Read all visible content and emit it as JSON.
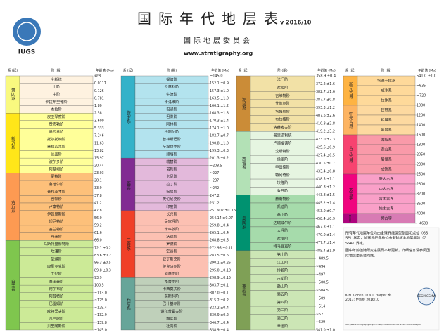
{
  "header": {
    "title": "国际年代地层表",
    "version": "v 2016/10",
    "subtitle": "国际地层委员会",
    "url": "www.stratigraphy.org",
    "logo": "IUGS"
  },
  "column_headers": [
    "系 (纪)",
    "阶 (期)",
    "年龄值 (Ma)"
  ],
  "panels": [
    {
      "top_age": "现今",
      "groups": [
        {
          "name": "第四系",
          "color": "#f9f97f",
          "stage_color": "#fef2e0",
          "rows": [
            {
              "name": "全新统",
              "age": "0.0117"
            },
            {
              "name": "上阶",
              "age": "0.126"
            },
            {
              "name": "中阶",
              "age": "0.781"
            },
            {
              "name": "卡拉布里雅阶",
              "age": "1.80"
            },
            {
              "name": "杰拉阶",
              "age": "2.58"
            }
          ]
        },
        {
          "name": "新近系",
          "color": "#ffe619",
          "stage_color": "#ffff99",
          "rows": [
            {
              "name": "皮亚琴察阶",
              "age": "3.600"
            },
            {
              "name": "赞克勒阶",
              "age": "5.333"
            },
            {
              "name": "墨西拿阶",
              "age": "7.246"
            },
            {
              "name": "托尔托纳阶",
              "age": "11.63"
            },
            {
              "name": "塞拉瓦莱阶",
              "age": "13.82"
            },
            {
              "name": "兰盖阶",
              "age": "15.97"
            },
            {
              "name": "波尔多阶",
              "age": "20.44"
            },
            {
              "name": "阿基坦阶",
              "age": "23.03"
            }
          ]
        },
        {
          "name": "古近系",
          "color": "#fd9a52",
          "stage_color": "#fdc07a",
          "rows": [
            {
              "name": "夏特阶",
              "age": "28.1"
            },
            {
              "name": "鲁培尔阶",
              "age": "33.9"
            },
            {
              "name": "普利亚本阶",
              "age": "37.8"
            },
            {
              "name": "巴顿阶",
              "age": "41.2"
            },
            {
              "name": "卢泰特阶",
              "age": "47.8"
            },
            {
              "name": "伊普里斯阶",
              "age": "56.0"
            },
            {
              "name": "坦尼特阶",
              "age": "59.2"
            },
            {
              "name": "塞兰特阶",
              "age": "61.6"
            },
            {
              "name": "丹麦阶",
              "age": "66.0"
            }
          ]
        },
        {
          "name": "白垩系",
          "color": "#7fc64e",
          "stage_color": "#ccea97",
          "rows": [
            {
              "name": "马斯特里赫特阶",
              "age": "72.1 ±0.2"
            },
            {
              "name": "坎潘阶",
              "age": "83.6 ±0.2"
            },
            {
              "name": "圣通阶",
              "age": "86.3 ±0.5"
            },
            {
              "name": "康尼亚克阶",
              "age": "89.8 ±0.3"
            },
            {
              "name": "土伦阶",
              "age": "93.9"
            },
            {
              "name": "赛诺曼阶",
              "age": "100.5"
            },
            {
              "name": "阿尔布阶",
              "age": "~113.0"
            },
            {
              "name": "阿普特阶",
              "age": "~125.0"
            },
            {
              "name": "巴雷姆阶",
              "age": "~129.4"
            },
            {
              "name": "欧特里夫阶",
              "age": "~132.9"
            },
            {
              "name": "凡兰吟阶",
              "age": "~139.8"
            },
            {
              "name": "贝里阿斯阶",
              "age": "~145.0"
            }
          ]
        }
      ]
    },
    {
      "top_age": "~145.0",
      "groups": [
        {
          "name": "侏罗系",
          "color": "#34b2c9",
          "stage_color": "#b3e3ee",
          "rows": [
            {
              "name": "提塘阶",
              "age": "152.1 ±0.9"
            },
            {
              "name": "钦莫利阶",
              "age": "157.3 ±1.0"
            },
            {
              "name": "牛津阶",
              "age": "163.5 ±1.0"
            },
            {
              "name": "卡洛维阶",
              "age": "166.1 ±1.2"
            },
            {
              "name": "巴通阶",
              "age": "168.3 ±1.3"
            },
            {
              "name": "巴柔阶",
              "age": "170.3 ±1.4"
            },
            {
              "name": "阿林阶",
              "age": "174.1 ±1.0"
            },
            {
              "name": "托阿尔阶",
              "age": "182.7 ±0.7"
            },
            {
              "name": "普林斯巴阶",
              "age": "190.8 ±1.0"
            },
            {
              "name": "辛涅缪尔阶",
              "age": "199.3 ±0.3"
            },
            {
              "name": "赫塘阶",
              "age": "201.3 ±0.2"
            }
          ]
        },
        {
          "name": "三叠系",
          "color": "#812b92",
          "stage_color": "#e3b9db",
          "rows": [
            {
              "name": "瑞替阶",
              "age": "~208.5"
            },
            {
              "name": "诺利阶",
              "age": "~227"
            },
            {
              "name": "卡尼阶",
              "age": "~237"
            },
            {
              "name": "拉丁阶",
              "age": "~242"
            },
            {
              "name": "安尼阶",
              "age": "247.2"
            },
            {
              "name": "奥伦尼克阶",
              "age": "251.2"
            },
            {
              "name": "印度阶",
              "age": "251.902 ±0.024"
            }
          ]
        },
        {
          "name": "二叠系",
          "color": "#f04028",
          "stage_color": "#fcc0b2",
          "rows": [
            {
              "name": "长兴阶",
              "age": "254.14 ±0.07"
            },
            {
              "name": "吴家坪阶",
              "age": "259.8 ±0.4"
            },
            {
              "name": "卡匹敦阶",
              "age": "265.1 ±0.4"
            },
            {
              "name": "沃德阶",
              "age": "268.8 ±0.5"
            },
            {
              "name": "罗德阶",
              "age": "272.95 ±0.11"
            },
            {
              "name": "空谷阶",
              "age": "283.5 ±0.6"
            },
            {
              "name": "亚丁斯克阶",
              "age": "290.1 ±0.26"
            },
            {
              "name": "萨克马尔阶",
              "age": "295.0 ±0.18"
            },
            {
              "name": "阿瑟尔阶",
              "age": "298.9 ±0.15"
            }
          ]
        },
        {
          "name": "石炭系",
          "color": "#67a599",
          "stage_color": "#bfd0ba",
          "rows": [
            {
              "name": "格舍尔阶",
              "age": "303.7 ±0.1"
            },
            {
              "name": "卡西莫夫阶",
              "age": "307.0 ±0.1"
            },
            {
              "name": "莫斯科阶",
              "age": "315.2 ±0.2"
            },
            {
              "name": "巴什基尔阶",
              "age": "323.2 ±0.4"
            },
            {
              "name": "谢尔普霍夫阶",
              "age": "330.9 ±0.2"
            },
            {
              "name": "维宪阶",
              "age": "346.7 ±0.4"
            },
            {
              "name": "杜内阶",
              "age": "358.9 ±0.4"
            }
          ]
        }
      ]
    },
    {
      "top_age": "358.9 ±0.4",
      "groups": [
        {
          "name": "泥盆系",
          "color": "#cb8c37",
          "stage_color": "#f2e1a6",
          "rows": [
            {
              "name": "法门阶",
              "age": "372.2 ±1.6"
            },
            {
              "name": "弗拉阶",
              "age": "382.7 ±1.6"
            },
            {
              "name": "吉维特阶",
              "age": "387.7 ±0.8"
            },
            {
              "name": "艾菲尔阶",
              "age": "393.3 ±1.2"
            },
            {
              "name": "埃姆斯阶",
              "age": "407.6 ±2.6"
            },
            {
              "name": "布拉格阶",
              "age": "410.8 ±2.8"
            },
            {
              "name": "洛赫考夫阶",
              "age": "419.2 ±3.2"
            }
          ]
        },
        {
          "name": "志留系",
          "color": "#b3e1b6",
          "stage_color": "#e6f5e1",
          "rows": [
            {
              "name": "普里道利统",
              "age": "423.0 ±2.3"
            },
            {
              "name": "卢德福德阶",
              "age": "425.6 ±0.9"
            },
            {
              "name": "戈斯特阶",
              "age": "427.4 ±0.5"
            },
            {
              "name": "侯墨阶",
              "age": "430.5 ±0.7"
            },
            {
              "name": "申伍德阶",
              "age": "433.4 ±0.8"
            },
            {
              "name": "特列奇阶",
              "age": "438.5 ±1.1"
            },
            {
              "name": "埃隆阶",
              "age": "440.8 ±1.2"
            },
            {
              "name": "鲁丹阶",
              "age": "443.8 ±1.5"
            }
          ]
        },
        {
          "name": "奥陶系",
          "color": "#009270",
          "stage_color": "#a6dbab",
          "rows": [
            {
              "name": "赫南特阶",
              "age": "445.2 ±1.4"
            },
            {
              "name": "凯迪阶",
              "age": "453.0 ±0.7"
            },
            {
              "name": "桑比阶",
              "age": "458.4 ±0.9"
            },
            {
              "name": "达瑞威尔阶",
              "age": "467.3 ±1.1"
            },
            {
              "name": "大坪阶",
              "age": "470.0 ±1.4"
            },
            {
              "name": "弗洛阶",
              "age": "477.7 ±1.4"
            },
            {
              "name": "特马豆克阶",
              "age": "485.4 ±1.9"
            }
          ]
        },
        {
          "name": "寒武系",
          "color": "#7fa056",
          "stage_color": "#cce6b5",
          "rows": [
            {
              "name": "第十阶",
              "age": "~489.5"
            },
            {
              "name": "江山阶",
              "age": "~494"
            },
            {
              "name": "排碧阶",
              "age": "~497"
            },
            {
              "name": "古丈阶",
              "age": "~500.5"
            },
            {
              "name": "鼓山阶",
              "age": "~504.5"
            },
            {
              "name": "第五阶",
              "age": "~509"
            },
            {
              "name": "第四阶",
              "age": "~514"
            },
            {
              "name": "第三阶",
              "age": "~521"
            },
            {
              "name": "第二阶",
              "age": "~529"
            },
            {
              "name": "幸运阶",
              "age": "541.0 ±1.0"
            }
          ]
        }
      ]
    },
    {
      "top_age": "541.0 ±1.0",
      "groups": [
        {
          "name": "新元古界",
          "color": "#feb342",
          "stage_color": "#fed99a",
          "rows": [
            {
              "name": "埃迪卡拉系",
              "age": "~635"
            },
            {
              "name": "成冰系",
              "age": "~720"
            },
            {
              "name": "拉伸系",
              "age": "1000"
            }
          ]
        },
        {
          "name": "中元古界",
          "color": "#fdb462",
          "stage_color": "#fdd9a0",
          "rows": [
            {
              "name": "狭带系",
              "age": "1200"
            },
            {
              "name": "延展系",
              "age": "1400"
            },
            {
              "name": "盖层系",
              "age": "1600"
            }
          ]
        },
        {
          "name": "古元古界",
          "color": "#f74370",
          "stage_color": "#f99aa9",
          "rows": [
            {
              "name": "固结系",
              "age": "1800"
            },
            {
              "name": "造山系",
              "age": "2050"
            },
            {
              "name": "层侵系",
              "age": "2300"
            },
            {
              "name": "成铁系",
              "age": "2500"
            }
          ]
        },
        {
          "name": "太古宇",
          "color": "#f0047f",
          "stage_color": "#f9a0c8",
          "rows": [
            {
              "name": "新太古界",
              "age": "2800"
            },
            {
              "name": "中太古界",
              "age": "3200"
            },
            {
              "name": "古太古界",
              "age": "3600"
            },
            {
              "name": "始太古界",
              "age": "4000"
            }
          ]
        },
        {
          "name": "冥古宇",
          "color": "#ae027e",
          "stage_color": "#d87bb4",
          "rows": [
            {
              "name": "冥古宇",
              "age": "~4600"
            }
          ]
        }
      ]
    }
  ],
  "notes": {
    "paragraphs": [
      "所有年代地层单位均由全球界线层型剖面和点位（GSSP）界定，前寒武纪各单位由全球标准地层年龄（GSSA）界定。",
      "图中年龄值随研究进展而不断更新，详细信息请参阅国际地层委员会网站。"
    ],
    "credits": "K.M. Cohen, D.A.T. Harper 等, 2013; 更新版 2016/10",
    "logo": "CCGM CGMW",
    "link": "http://www.stratigraphy.org/ICSchart/ChronostratChart2016-10Chinese.pdf"
  }
}
